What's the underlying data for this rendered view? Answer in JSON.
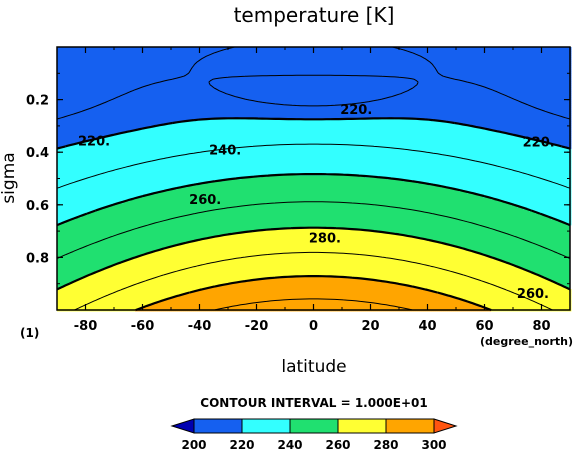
{
  "chart_data": {
    "type": "contour",
    "title": "temperature [K]",
    "xlabel": "latitude",
    "ylabel": "sigma",
    "x_units": "(degree_north)",
    "y_units": "(1)",
    "xlim": [
      -90,
      90
    ],
    "ylim": [
      1.0,
      0.0
    ],
    "y_reversed": true,
    "x_ticks": [
      -80,
      -60,
      -40,
      -20,
      0,
      20,
      40,
      60,
      80
    ],
    "y_ticks": [
      0.2,
      0.4,
      0.6,
      0.8
    ],
    "contour_interval_text": "CONTOUR INTERVAL = 1.000E+01",
    "levels": [
      200,
      210,
      220,
      230,
      240,
      250,
      260,
      270,
      280,
      290,
      300
    ],
    "contour_labels": [
      {
        "text": "220.",
        "lat": 15,
        "sigma": 0.235
      },
      {
        "text": "220.",
        "lat": -77,
        "sigma": 0.355
      },
      {
        "text": "220.",
        "lat": 79,
        "sigma": 0.36
      },
      {
        "text": "240.",
        "lat": -31,
        "sigma": 0.39
      },
      {
        "text": "260.",
        "lat": -38,
        "sigma": 0.578
      },
      {
        "text": "280.",
        "lat": 4,
        "sigma": 0.725
      },
      {
        "text": "260.",
        "lat": 77,
        "sigma": 0.935
      }
    ],
    "colorbar": {
      "ticks": [
        "200",
        "220",
        "240",
        "260",
        "280",
        "300"
      ],
      "colors": [
        "#0000b0",
        "#1560f0",
        "#33ffff",
        "#20e070",
        "#ffff33",
        "#ffa500",
        "#ff5510"
      ]
    },
    "fill_colors": [
      "#1560f0",
      "#33ffff",
      "#20e070",
      "#ffff33",
      "#ffa500"
    ]
  }
}
